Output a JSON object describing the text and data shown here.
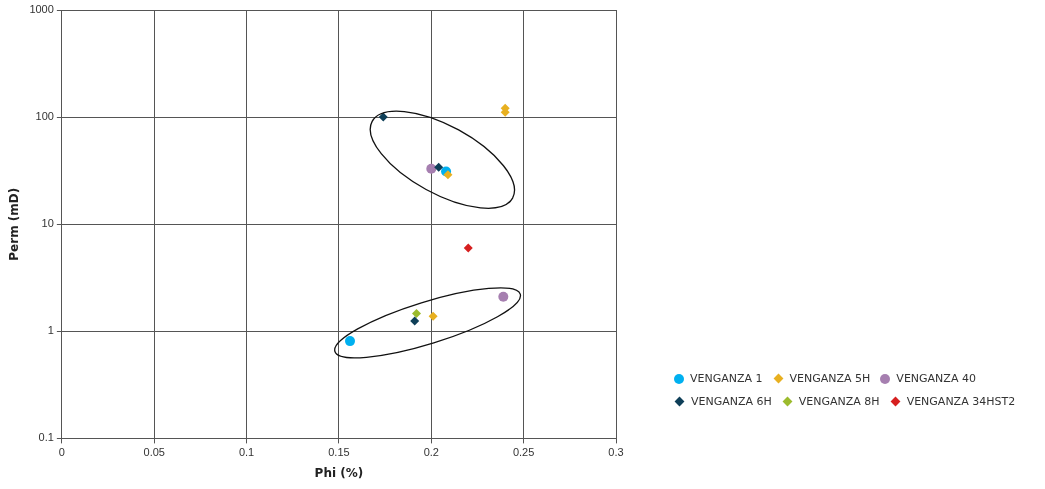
{
  "chart_data": {
    "type": "scatter",
    "xlabel": "Phi (%)",
    "ylabel": "Perm (mD)",
    "log": "y",
    "xlim": [
      0,
      0.3
    ],
    "xticks": [
      0,
      0.05,
      0.1,
      0.15,
      0.2,
      0.25,
      0.3
    ],
    "ylim": [
      0.1,
      1000
    ],
    "yticks": [
      0.1,
      1,
      10,
      100,
      1000
    ],
    "grid": true,
    "legend": "bottom right",
    "series": [
      {
        "name": "VENGANZA 1",
        "color": "#00b0f0",
        "marker": "circle",
        "x": [
          0.208,
          0.156
        ],
        "values": [
          31,
          0.81
        ]
      },
      {
        "name": "VENGANZA 5H",
        "color": "#e8b020",
        "marker": "diamond",
        "x": [
          0.24,
          0.24,
          0.209,
          0.201
        ],
        "values": [
          121,
          111,
          29,
          1.38
        ]
      },
      {
        "name": "VENGANZA 40",
        "color": "#a67fb0",
        "marker": "circle",
        "x": [
          0.2,
          0.239
        ],
        "values": [
          33,
          2.1
        ]
      },
      {
        "name": "VENGANZA 6H",
        "color": "#0e3f58",
        "marker": "diamond",
        "x": [
          0.174,
          0.204,
          0.191
        ],
        "values": [
          100,
          34,
          1.25
        ]
      },
      {
        "name": "VENGANZA 8H",
        "color": "#9cbb2d",
        "marker": "diamond",
        "x": [
          0.192
        ],
        "values": [
          1.47
        ]
      },
      {
        "name": "VENGANZA 34HST2",
        "color": "#d62020",
        "marker": "diamond",
        "x": [
          0.22
        ],
        "values": [
          6.0
        ]
      }
    ]
  }
}
